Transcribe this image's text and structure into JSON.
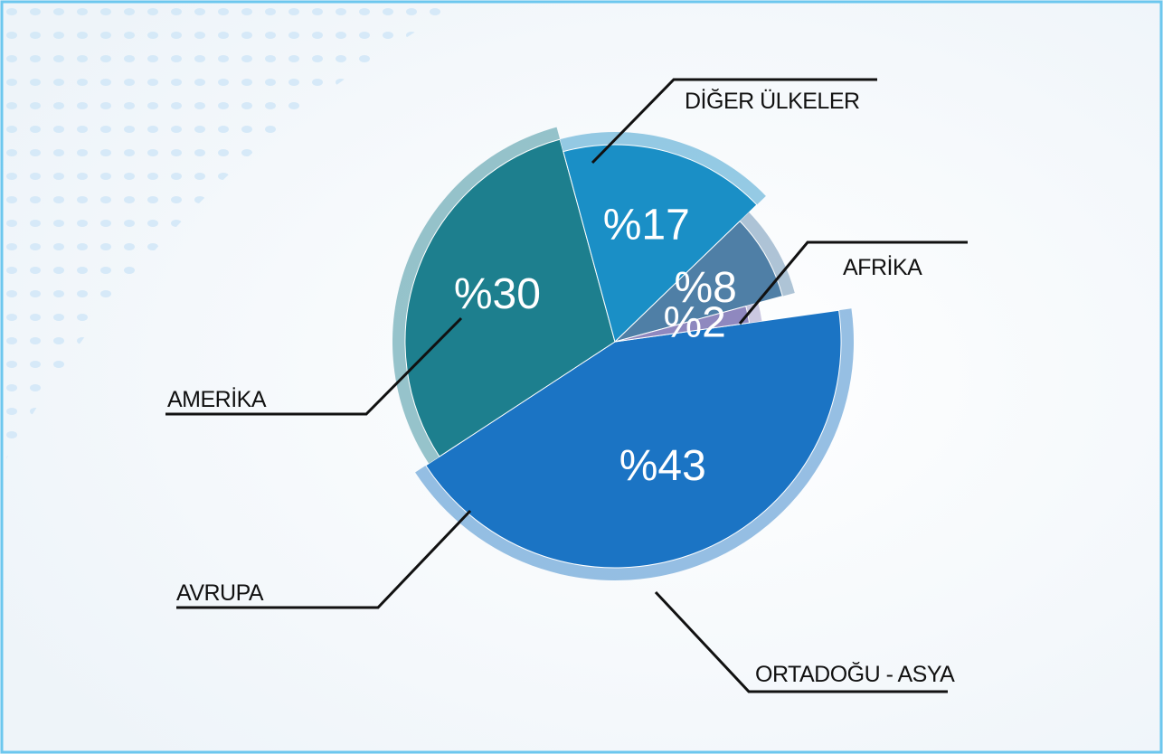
{
  "chart_data": {
    "type": "pie",
    "categories": [
      "ORTADOĞU - ASYA",
      "AVRUPA",
      "AMERİKA",
      "DİĞER ÜLKELER",
      "AFRİKA"
    ],
    "values": [
      43,
      30,
      17,
      8,
      2
    ],
    "value_labels": [
      "%43",
      "%30",
      "%17",
      "%8",
      "%2"
    ],
    "colors": [
      "#1b74c4",
      "#1d7f8e",
      "#1a8fc6",
      "#4f7fa6",
      "#8f88bf"
    ]
  }
}
